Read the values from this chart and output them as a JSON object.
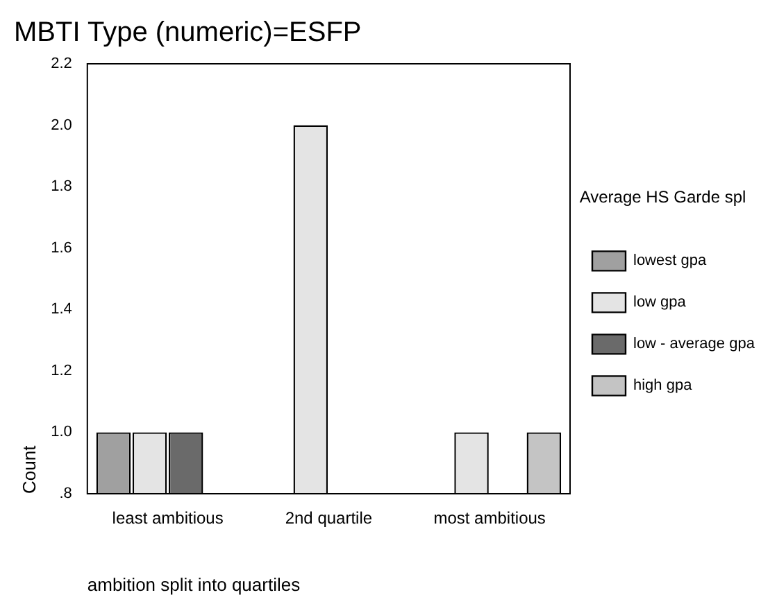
{
  "chart_data": {
    "type": "bar",
    "title": "MBTI Type (numeric)=ESFP",
    "xlabel": "ambition split into quartiles",
    "ylabel": "Count",
    "legend_title": "Average HS Garde spl",
    "categories": [
      "least ambitious",
      "2nd quartile",
      "most ambitious"
    ],
    "series": [
      {
        "name": "lowest gpa",
        "color": "#a0a0a0",
        "values": [
          1,
          null,
          null
        ]
      },
      {
        "name": "low gpa",
        "color": "#e4e4e4",
        "values": [
          1,
          2,
          1
        ]
      },
      {
        "name": "low - average gpa",
        "color": "#6a6a6a",
        "values": [
          1,
          null,
          null
        ]
      },
      {
        "name": "high gpa",
        "color": "#c4c4c4",
        "values": [
          null,
          null,
          1
        ]
      }
    ],
    "ylim": [
      0.8,
      2.2
    ],
    "yticks": [
      {
        "value": 0.8,
        "label": ".8"
      },
      {
        "value": 1,
        "label": "1.0"
      },
      1.2,
      1.4,
      1.6,
      1.8,
      {
        "value": 2,
        "label": "2.0"
      },
      2.2
    ],
    "grid": false,
    "legend": "right"
  }
}
